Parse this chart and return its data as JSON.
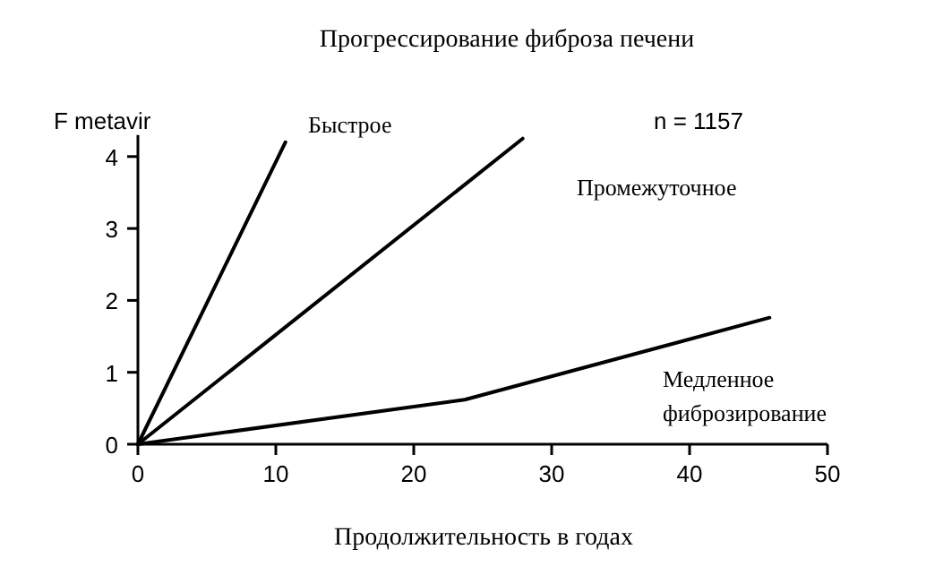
{
  "chart_data": {
    "type": "line",
    "title": "Прогрессирование фиброза печени",
    "xlabel": "Продолжительность в годах",
    "ylabel": "F metavir",
    "annotations": [
      "n = 1157"
    ],
    "xlim": [
      0,
      50
    ],
    "xticks": [
      0,
      10,
      20,
      30,
      40,
      50
    ],
    "ylim": [
      0,
      4.3
    ],
    "yticks": [
      0,
      1,
      2,
      3,
      4
    ],
    "grid": false,
    "marker": "none",
    "line_style": "solid",
    "series": [
      {
        "name": "Быстрое",
        "color": "#000000",
        "x": [
          0,
          10.7
        ],
        "values": [
          0,
          4.2
        ]
      },
      {
        "name": "Промежуточное",
        "color": "#000000",
        "x": [
          0,
          27.9
        ],
        "values": [
          0,
          4.25
        ]
      },
      {
        "name": "Медленное фиброзирование",
        "color": "#000000",
        "x": [
          0,
          23.7,
          45.8
        ],
        "values": [
          0,
          0.62,
          1.76
        ]
      }
    ]
  }
}
